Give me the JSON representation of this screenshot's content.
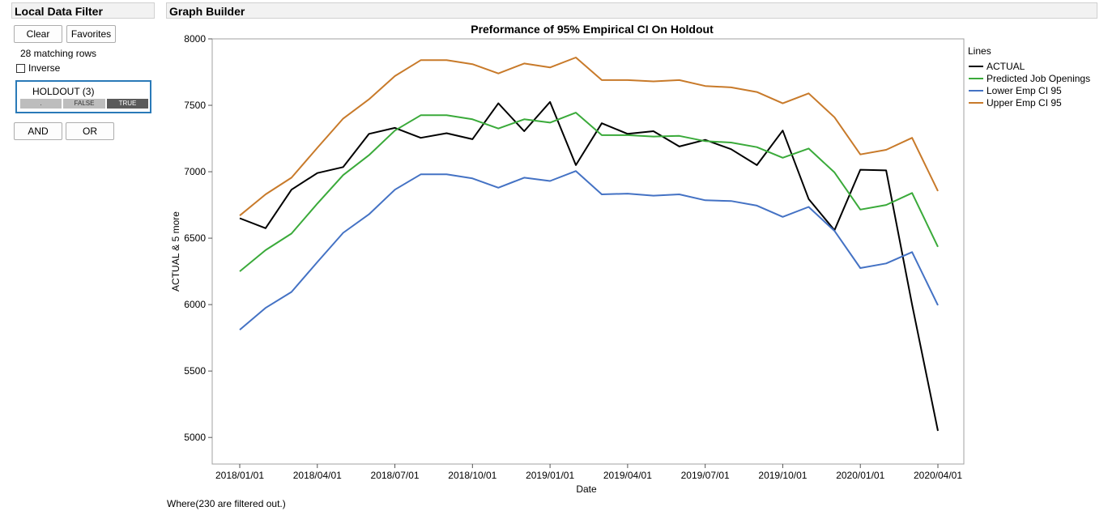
{
  "filter": {
    "header": "Local Data Filter",
    "clear_label": "Clear",
    "favorites_label": "Favorites",
    "matching_rows": "28 matching rows",
    "inverse_label": "Inverse",
    "holdout_title": "HOLDOUT (3)",
    "segments": [
      ".",
      "FALSE",
      "TRUE"
    ],
    "selected_segment": "TRUE",
    "and_label": "AND",
    "or_label": "OR"
  },
  "graph": {
    "header": "Graph Builder",
    "where_text": "Where(230 are filtered out.)"
  },
  "colors": {
    "selected_segment": "#5a5a5a",
    "unselected_segment": "#bdbdbd",
    "filter_border": "#2a7ab8"
  },
  "chart_data": {
    "type": "line",
    "title": "Preformance of 95% Empirical CI On Holdout",
    "xlabel": "Date",
    "ylabel": "ACTUAL & 5 more",
    "ylim": [
      4800,
      8000
    ],
    "yticks": [
      5000,
      5500,
      6000,
      6500,
      7000,
      7500,
      8000
    ],
    "xticks": [
      "2018/01/01",
      "2018/04/01",
      "2018/07/01",
      "2018/10/01",
      "2019/01/01",
      "2019/04/01",
      "2019/07/01",
      "2019/10/01",
      "2020/01/01",
      "2020/04/01"
    ],
    "x": [
      "2018/01/01",
      "2018/02/01",
      "2018/03/01",
      "2018/04/01",
      "2018/05/01",
      "2018/06/01",
      "2018/07/01",
      "2018/08/01",
      "2018/09/01",
      "2018/10/01",
      "2018/11/01",
      "2018/12/01",
      "2019/01/01",
      "2019/02/01",
      "2019/03/01",
      "2019/04/01",
      "2019/05/01",
      "2019/06/01",
      "2019/07/01",
      "2019/08/01",
      "2019/09/01",
      "2019/10/01",
      "2019/11/01",
      "2019/12/01",
      "2020/01/01",
      "2020/02/01",
      "2020/03/01",
      "2020/04/01"
    ],
    "legend_title": "Lines",
    "legend_position": "right",
    "series": [
      {
        "name": "ACTUAL",
        "color": "#000000",
        "values": [
          6650,
          6575,
          6865,
          6990,
          7035,
          7285,
          7330,
          7255,
          7290,
          7245,
          7515,
          7305,
          7525,
          7050,
          7365,
          7285,
          7305,
          7190,
          7240,
          7170,
          7050,
          7310,
          6795,
          6560,
          7015,
          7010,
          6000,
          5050
        ]
      },
      {
        "name": "Predicted Job Openings",
        "color": "#3aaa3a",
        "values": [
          6250,
          6410,
          6535,
          6760,
          6975,
          7125,
          7310,
          7425,
          7425,
          7395,
          7325,
          7395,
          7370,
          7445,
          7275,
          7275,
          7265,
          7270,
          7230,
          7220,
          7185,
          7105,
          7175,
          6995,
          6715,
          6750,
          6840,
          6435
        ]
      },
      {
        "name": "Lower Emp CI 95",
        "color": "#4472c4",
        "values": [
          5810,
          5975,
          6095,
          6320,
          6540,
          6680,
          6865,
          6980,
          6980,
          6950,
          6880,
          6955,
          6930,
          7005,
          6830,
          6835,
          6820,
          6830,
          6785,
          6780,
          6745,
          6660,
          6735,
          6555,
          6275,
          6310,
          6395,
          5995
        ]
      },
      {
        "name": "Upper Emp CI 95",
        "color": "#c87a2a",
        "values": [
          6670,
          6830,
          6955,
          7180,
          7400,
          7545,
          7720,
          7840,
          7840,
          7810,
          7740,
          7815,
          7785,
          7860,
          7690,
          7690,
          7680,
          7690,
          7645,
          7635,
          7600,
          7515,
          7590,
          7410,
          7130,
          7165,
          7255,
          6855
        ]
      }
    ]
  }
}
